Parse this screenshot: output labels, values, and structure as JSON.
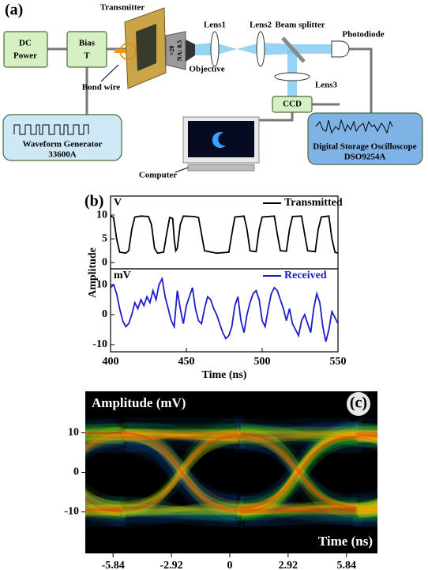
{
  "diagram": {
    "panel": "(a)",
    "dc_power": [
      "DC",
      "Power"
    ],
    "bias_t": [
      "Bias",
      "T"
    ],
    "transmitter": "Transmitter",
    "bond_wire": "Bond wire",
    "objective": "Objective",
    "objective_spec": [
      "×20",
      "NA: 0.5"
    ],
    "lens1": "Lens1",
    "lens2": "Lens2",
    "beam_splitter": "Beam splitter",
    "photodiode": "Photodiode",
    "lens3": "Lens3",
    "ccd": "CCD",
    "computer": "Computer",
    "waveform_generator": [
      "Waveform Generator",
      "33600A"
    ],
    "oscilloscope": [
      "Digital Storage Oscilloscope",
      "DSO9254A"
    ]
  },
  "chart_data": [
    {
      "type": "line",
      "panel": "(b)",
      "ylabel": "Amplitude",
      "unit_label": "V",
      "x": [
        400,
        402,
        404,
        406,
        410,
        412,
        414,
        416,
        420,
        425,
        427,
        429,
        431,
        435,
        437,
        439,
        441,
        442,
        443,
        444,
        446,
        448,
        455,
        458,
        460,
        462,
        470,
        478,
        480,
        482,
        488,
        490,
        492,
        496,
        498,
        500,
        508,
        510,
        512,
        516,
        518,
        520,
        526,
        528,
        530,
        535,
        537,
        539,
        544,
        546,
        548,
        550
      ],
      "series": [
        {
          "name": "Transmitted",
          "color": "#000000",
          "values": [
            9.8,
            9.5,
            5,
            2.2,
            2,
            2.5,
            7,
            9.6,
            9.8,
            9.7,
            8,
            3,
            2,
            2.2,
            6,
            9.5,
            9.3,
            5,
            2.5,
            3,
            8,
            9.8,
            9.7,
            9.5,
            6,
            2.5,
            2,
            2.2,
            6,
            9.6,
            9.8,
            7,
            2.5,
            2.3,
            7,
            9.6,
            9.8,
            6,
            2.5,
            2.4,
            7,
            9.7,
            9.8,
            6,
            2.5,
            2.3,
            7,
            9.6,
            9.8,
            5,
            2.2,
            2
          ]
        }
      ],
      "xlim": [
        400,
        550
      ],
      "ylim": [
        -1.3,
        14
      ],
      "yticks": [
        0,
        5,
        10
      ]
    },
    {
      "type": "line",
      "xlabel": "Time (ns)",
      "unit_label": "mV",
      "x": [
        400,
        402,
        404,
        406,
        408,
        410,
        412,
        414,
        416,
        418,
        420,
        422,
        424,
        426,
        428,
        430,
        432,
        434,
        436,
        438,
        440,
        442,
        444,
        446,
        448,
        450,
        452,
        454,
        456,
        458,
        460,
        462,
        464,
        466,
        468,
        470,
        472,
        474,
        476,
        478,
        480,
        482,
        484,
        486,
        488,
        490,
        492,
        494,
        496,
        498,
        500,
        502,
        504,
        506,
        508,
        510,
        512,
        514,
        516,
        518,
        520,
        522,
        524,
        526,
        528,
        530,
        532,
        534,
        536,
        538,
        540,
        542,
        544,
        546,
        548,
        550
      ],
      "series": [
        {
          "name": "Received",
          "color": "#1c1ccc",
          "values": [
            9,
            10,
            7,
            2,
            -2,
            -4,
            -3,
            0,
            4,
            2,
            5,
            3,
            6,
            4,
            8,
            5,
            10,
            12,
            6,
            2,
            -2,
            -4,
            8,
            2,
            -3,
            3,
            6,
            9,
            2,
            -2,
            -3,
            2,
            6,
            5,
            2,
            0,
            -3,
            -6,
            -8,
            -7,
            -4,
            3,
            6,
            -2,
            -6,
            0,
            4,
            7,
            8,
            5,
            -2,
            -4,
            2,
            7,
            9,
            8,
            5,
            2,
            -2,
            2,
            -3,
            -5,
            -7,
            -2,
            0,
            -3,
            -6,
            2,
            7,
            4,
            -4,
            -9,
            -5,
            1,
            -1,
            -3
          ]
        }
      ],
      "xlim": [
        400,
        550
      ],
      "xticks": [
        400,
        450,
        500,
        550
      ],
      "ylim": [
        -12.4,
        15.3
      ],
      "yticks": [
        -10,
        0,
        10
      ]
    },
    {
      "type": "eye",
      "panel": "(c)",
      "ylabel": "Amplitude (mV)",
      "xlabel": "Time (ns)",
      "xlim": [
        -7.23,
        7.39
      ],
      "xticks": [
        -5.84,
        -2.92,
        0,
        2.92,
        5.84
      ],
      "ylim": [
        -20.5,
        20.5
      ],
      "yticks": [
        -10,
        0,
        10
      ]
    }
  ]
}
